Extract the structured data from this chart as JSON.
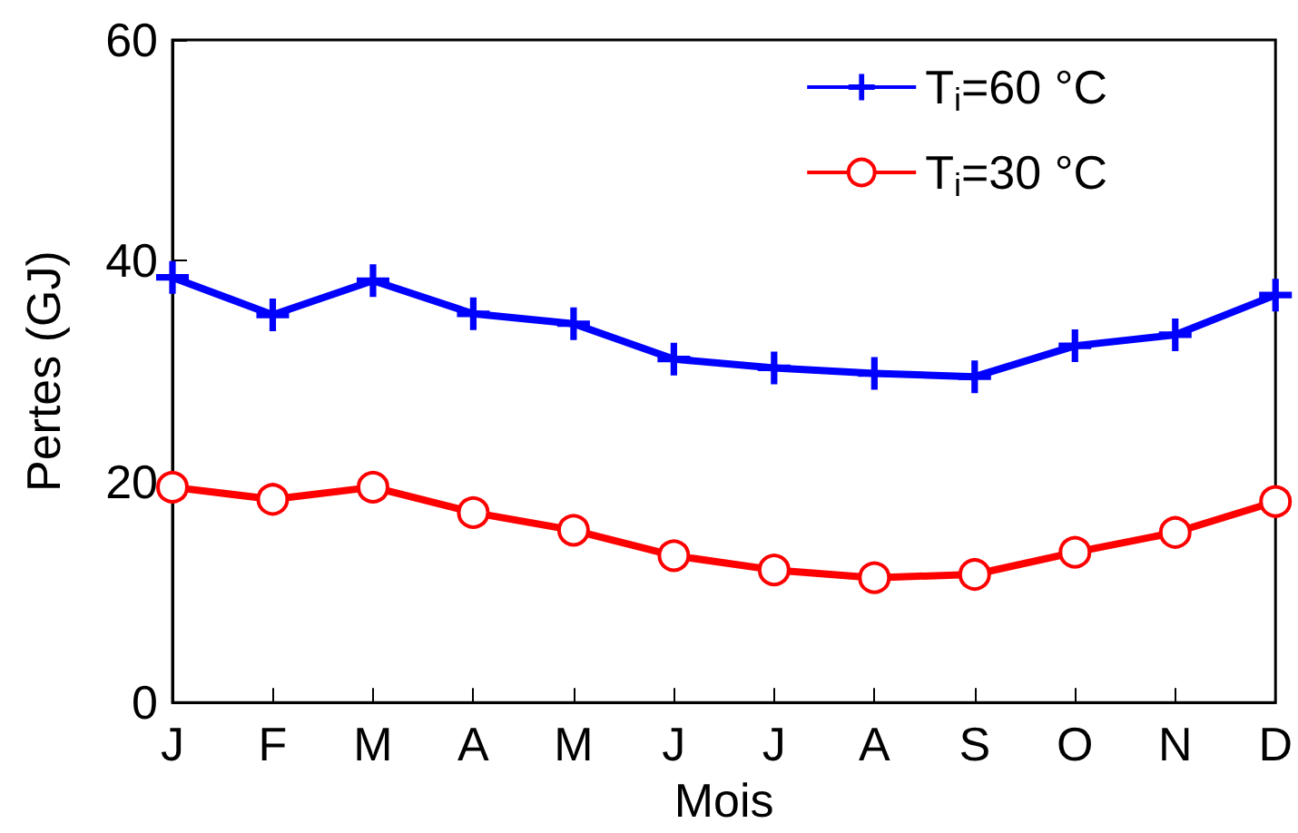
{
  "chart_data": {
    "type": "line",
    "xlabel": "Mois",
    "ylabel": "Pertes (GJ)",
    "categories": [
      "J",
      "F",
      "M",
      "A",
      "M",
      "J",
      "J",
      "A",
      "S",
      "O",
      "N",
      "D"
    ],
    "series": [
      {
        "name": "T$_{i}$=60 °C",
        "color": "#0000ff",
        "marker": "cross",
        "values": [
          38.5,
          35.1,
          38.2,
          35.2,
          34.3,
          31.1,
          30.3,
          29.8,
          29.5,
          32.3,
          33.3,
          36.9
        ]
      },
      {
        "name": "T$_{i}$=30 °C",
        "color": "#ff0000",
        "marker": "circle",
        "values": [
          19.5,
          18.4,
          19.5,
          17.2,
          15.6,
          13.3,
          12.0,
          11.3,
          11.6,
          13.6,
          15.4,
          18.2
        ]
      }
    ],
    "ylim": [
      0,
      60
    ],
    "yticks": [
      0,
      20,
      40,
      60
    ],
    "grid": false,
    "legend": "top right",
    "line_style": "solid"
  }
}
